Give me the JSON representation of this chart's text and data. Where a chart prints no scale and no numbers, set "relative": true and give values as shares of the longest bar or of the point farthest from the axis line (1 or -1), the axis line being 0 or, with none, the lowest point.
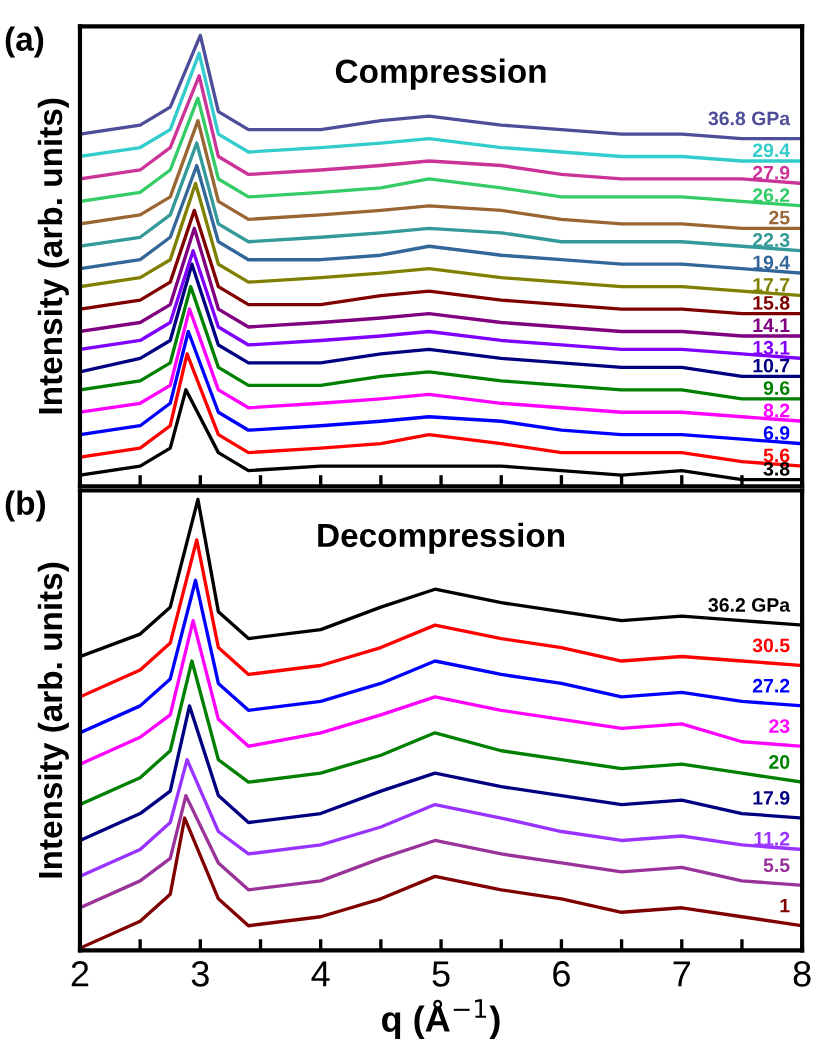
{
  "chart_data": [
    {
      "type": "line",
      "title": "Compression",
      "ylabel": "Intensity (arb. units)",
      "annotations": [
        "(a)"
      ],
      "relative": true,
      "legend": "right",
      "tick_labels": false,
      "xlim": [
        2,
        8
      ],
      "xticks": [
        2,
        {
          "value": 2.5,
          "label": null
        },
        3,
        {
          "value": 3.5,
          "label": null
        },
        4,
        {
          "value": 4.5,
          "label": null
        },
        5,
        {
          "value": 5.5,
          "label": null
        },
        6,
        {
          "value": 6.5,
          "label": null
        },
        7,
        {
          "value": 7.5,
          "label": null
        },
        8
      ],
      "series": [
        {
          "name": "3.8",
          "color": "#000000",
          "x": [
            2,
            2.5,
            2.75,
            2.88,
            3.15,
            3.4,
            4.0,
            4.5,
            4.9,
            5.5,
            6.0,
            6.5,
            7.0,
            7.5,
            8
          ],
          "values": [
            0.02,
            0.04,
            0.08,
            0.21,
            0.07,
            0.03,
            0.04,
            0.04,
            0.04,
            0.04,
            0.03,
            0.02,
            0.03,
            0.01,
            0.01
          ]
        },
        {
          "name": "5.6",
          "color": "#ff0000",
          "x": [
            2,
            2.5,
            2.75,
            2.89,
            3.15,
            3.4,
            4.0,
            4.5,
            4.9,
            5.5,
            6.0,
            6.5,
            7.0,
            7.5,
            8
          ],
          "values": [
            0.06,
            0.08,
            0.13,
            0.29,
            0.11,
            0.07,
            0.08,
            0.09,
            0.11,
            0.09,
            0.07,
            0.07,
            0.07,
            0.05,
            0.04
          ]
        },
        {
          "name": "6.9",
          "color": "#0000ff",
          "x": [
            2,
            2.5,
            2.75,
            2.9,
            3.15,
            3.4,
            4.0,
            4.5,
            4.9,
            5.5,
            6.0,
            6.5,
            7.0,
            7.5,
            8
          ],
          "values": [
            0.11,
            0.13,
            0.18,
            0.34,
            0.16,
            0.12,
            0.13,
            0.14,
            0.15,
            0.14,
            0.12,
            0.11,
            0.11,
            0.1,
            0.09
          ]
        },
        {
          "name": "8.2",
          "color": "#ff00ff",
          "x": [
            2,
            2.5,
            2.75,
            2.91,
            3.15,
            3.4,
            4.0,
            4.5,
            4.9,
            5.5,
            6.0,
            6.5,
            7.0,
            7.5,
            8
          ],
          "values": [
            0.16,
            0.18,
            0.22,
            0.39,
            0.21,
            0.17,
            0.18,
            0.19,
            0.2,
            0.18,
            0.17,
            0.16,
            0.16,
            0.15,
            0.14
          ]
        },
        {
          "name": "9.6",
          "color": "#008000",
          "x": [
            2,
            2.5,
            2.75,
            2.92,
            3.15,
            3.4,
            4.0,
            4.5,
            4.9,
            5.5,
            6.0,
            6.5,
            7.0,
            7.5,
            8
          ],
          "values": [
            0.21,
            0.23,
            0.27,
            0.44,
            0.26,
            0.22,
            0.22,
            0.24,
            0.25,
            0.23,
            0.22,
            0.21,
            0.21,
            0.19,
            0.19
          ]
        },
        {
          "name": "10.7",
          "color": "#000080",
          "x": [
            2,
            2.5,
            2.75,
            2.93,
            3.15,
            3.4,
            4.0,
            4.5,
            4.9,
            5.5,
            6.0,
            6.5,
            7.0,
            7.5,
            8
          ],
          "values": [
            0.25,
            0.28,
            0.32,
            0.49,
            0.31,
            0.27,
            0.27,
            0.29,
            0.3,
            0.28,
            0.27,
            0.26,
            0.26,
            0.24,
            0.24
          ]
        },
        {
          "name": "13.1",
          "color": "#8000ff",
          "x": [
            2,
            2.5,
            2.75,
            2.94,
            3.15,
            3.4,
            4.0,
            4.5,
            4.9,
            5.5,
            6.0,
            6.5,
            7.0,
            7.5,
            8
          ],
          "values": [
            0.3,
            0.32,
            0.36,
            0.52,
            0.35,
            0.31,
            0.32,
            0.33,
            0.34,
            0.32,
            0.31,
            0.3,
            0.3,
            0.29,
            0.28
          ]
        },
        {
          "name": "14.1",
          "color": "#800080",
          "x": [
            2,
            2.5,
            2.75,
            2.95,
            3.15,
            3.4,
            4.0,
            4.5,
            4.9,
            5.5,
            6.0,
            6.5,
            7.0,
            7.5,
            8
          ],
          "values": [
            0.34,
            0.36,
            0.4,
            0.57,
            0.39,
            0.35,
            0.36,
            0.37,
            0.38,
            0.36,
            0.35,
            0.34,
            0.34,
            0.33,
            0.33
          ]
        },
        {
          "name": "15.8",
          "color": "#800000",
          "x": [
            2,
            2.5,
            2.75,
            2.95,
            3.15,
            3.4,
            4.0,
            4.5,
            4.9,
            5.5,
            6.0,
            6.5,
            7.0,
            7.5,
            8
          ],
          "values": [
            0.39,
            0.41,
            0.45,
            0.61,
            0.44,
            0.4,
            0.4,
            0.42,
            0.43,
            0.41,
            0.4,
            0.39,
            0.39,
            0.38,
            0.38
          ]
        },
        {
          "name": "17.7",
          "color": "#808000",
          "x": [
            2,
            2.5,
            2.75,
            2.96,
            3.15,
            3.4,
            4.0,
            4.5,
            4.9,
            5.5,
            6.0,
            6.5,
            7.0,
            7.5,
            8
          ],
          "values": [
            0.44,
            0.46,
            0.5,
            0.67,
            0.49,
            0.45,
            0.46,
            0.47,
            0.48,
            0.46,
            0.45,
            0.44,
            0.44,
            0.43,
            0.42
          ]
        },
        {
          "name": "19.4",
          "color": "#336699",
          "x": [
            2,
            2.5,
            2.75,
            2.97,
            3.15,
            3.4,
            4.0,
            4.5,
            4.9,
            5.5,
            6.0,
            6.5,
            7.0,
            7.5,
            8
          ],
          "values": [
            0.48,
            0.5,
            0.55,
            0.71,
            0.54,
            0.5,
            0.5,
            0.51,
            0.53,
            0.51,
            0.5,
            0.49,
            0.49,
            0.48,
            0.47
          ]
        },
        {
          "name": "22.3",
          "color": "#339999",
          "x": [
            2,
            2.5,
            2.75,
            2.97,
            3.15,
            3.4,
            4.0,
            4.5,
            4.9,
            5.5,
            6.0,
            6.5,
            7.0,
            7.5,
            8
          ],
          "values": [
            0.53,
            0.55,
            0.6,
            0.76,
            0.58,
            0.54,
            0.55,
            0.56,
            0.57,
            0.56,
            0.54,
            0.54,
            0.54,
            0.53,
            0.52
          ]
        },
        {
          "name": "25",
          "color": "#996633",
          "x": [
            2,
            2.5,
            2.75,
            2.98,
            3.15,
            3.4,
            4.0,
            4.5,
            4.9,
            5.5,
            6.0,
            6.5,
            7.0,
            7.5,
            8
          ],
          "values": [
            0.58,
            0.6,
            0.64,
            0.81,
            0.63,
            0.59,
            0.6,
            0.61,
            0.62,
            0.61,
            0.59,
            0.58,
            0.58,
            0.57,
            0.57
          ]
        },
        {
          "name": "26.2",
          "color": "#33cc66",
          "x": [
            2,
            2.5,
            2.75,
            2.98,
            3.15,
            3.4,
            4.0,
            4.5,
            4.9,
            5.5,
            6.0,
            6.5,
            7.0,
            7.5,
            8
          ],
          "values": [
            0.63,
            0.65,
            0.7,
            0.86,
            0.68,
            0.64,
            0.65,
            0.66,
            0.68,
            0.66,
            0.64,
            0.64,
            0.64,
            0.63,
            0.62
          ]
        },
        {
          "name": "27.9",
          "color": "#cc3399",
          "x": [
            2,
            2.5,
            2.75,
            2.99,
            3.15,
            3.4,
            4.0,
            4.5,
            4.9,
            5.5,
            6.0,
            6.5,
            7.0,
            7.5,
            8
          ],
          "values": [
            0.68,
            0.7,
            0.75,
            0.91,
            0.73,
            0.69,
            0.7,
            0.71,
            0.72,
            0.71,
            0.69,
            0.68,
            0.68,
            0.68,
            0.67
          ]
        },
        {
          "name": "29.4",
          "color": "#33cccc",
          "x": [
            2,
            2.5,
            2.75,
            2.99,
            3.15,
            3.4,
            4.0,
            4.5,
            4.9,
            5.5,
            6.0,
            6.5,
            7.0,
            7.5,
            8
          ],
          "values": [
            0.73,
            0.75,
            0.79,
            0.96,
            0.78,
            0.74,
            0.75,
            0.76,
            0.77,
            0.75,
            0.74,
            0.73,
            0.73,
            0.72,
            0.72
          ]
        },
        {
          "name": "36.8 GPa",
          "color": "#4d4d99",
          "x": [
            2,
            2.5,
            2.75,
            3.0,
            3.15,
            3.4,
            4.0,
            4.5,
            4.9,
            5.5,
            6.0,
            6.5,
            7.0,
            7.5,
            8
          ],
          "values": [
            0.78,
            0.8,
            0.84,
            1,
            0.83,
            0.79,
            0.79,
            0.81,
            0.82,
            0.8,
            0.79,
            0.78,
            0.78,
            0.77,
            0.77
          ]
        }
      ]
    },
    {
      "type": "line",
      "title": "Decompression",
      "xlabel": "q (Å$^{−1}$)",
      "ylabel": "Intensity (arb. units)",
      "annotations": [
        "(b)"
      ],
      "relative": true,
      "legend": "right",
      "tick_labels": "x",
      "xlim": [
        2,
        8
      ],
      "xticks": [
        2,
        {
          "value": 2.5,
          "label": null
        },
        3,
        {
          "value": 3.5,
          "label": null
        },
        4,
        {
          "value": 4.5,
          "label": null
        },
        5,
        {
          "value": 5.5,
          "label": null
        },
        6,
        {
          "value": 6.5,
          "label": null
        },
        7,
        {
          "value": 7.5,
          "label": null
        },
        8
      ],
      "series": [
        {
          "name": "1",
          "color": "#800000",
          "x": [
            2,
            2.5,
            2.75,
            2.87,
            3.15,
            3.4,
            4.0,
            4.5,
            4.95,
            5.5,
            6.0,
            6.5,
            7.0,
            7.5,
            8
          ],
          "values": [
            0,
            0.06,
            0.12,
            0.29,
            0.11,
            0.05,
            0.07,
            0.11,
            0.16,
            0.13,
            0.11,
            0.08,
            0.09,
            0.07,
            0.05
          ]
        },
        {
          "name": "5.5",
          "color": "#993399",
          "x": [
            2,
            2.5,
            2.75,
            2.88,
            3.15,
            3.4,
            4.0,
            4.5,
            4.95,
            5.5,
            6.0,
            6.5,
            7.0,
            7.5,
            8
          ],
          "values": [
            0.09,
            0.15,
            0.2,
            0.34,
            0.19,
            0.13,
            0.15,
            0.2,
            0.24,
            0.21,
            0.19,
            0.17,
            0.18,
            0.15,
            0.14
          ]
        },
        {
          "name": "11.2",
          "color": "#9933ff",
          "x": [
            2,
            2.5,
            2.75,
            2.89,
            3.15,
            3.4,
            4.0,
            4.5,
            4.95,
            5.5,
            6.0,
            6.5,
            7.0,
            7.5,
            8
          ],
          "values": [
            0.16,
            0.22,
            0.28,
            0.42,
            0.26,
            0.21,
            0.23,
            0.27,
            0.32,
            0.29,
            0.26,
            0.24,
            0.25,
            0.23,
            0.22
          ]
        },
        {
          "name": "17.9",
          "color": "#000080",
          "x": [
            2,
            2.5,
            2.75,
            2.91,
            3.15,
            3.4,
            4.0,
            4.5,
            4.95,
            5.5,
            6.0,
            6.5,
            7.0,
            7.5,
            8
          ],
          "values": [
            0.24,
            0.3,
            0.35,
            0.54,
            0.34,
            0.28,
            0.3,
            0.35,
            0.39,
            0.36,
            0.34,
            0.32,
            0.33,
            0.3,
            0.29
          ]
        },
        {
          "name": "20",
          "color": "#008000",
          "x": [
            2,
            2.5,
            2.75,
            2.93,
            3.15,
            3.4,
            4.0,
            4.5,
            4.95,
            5.5,
            6.0,
            6.5,
            7.0,
            7.5,
            8
          ],
          "values": [
            0.32,
            0.38,
            0.44,
            0.64,
            0.42,
            0.37,
            0.39,
            0.43,
            0.48,
            0.44,
            0.42,
            0.4,
            0.41,
            0.39,
            0.37
          ]
        },
        {
          "name": "23",
          "color": "#ff00ff",
          "x": [
            2,
            2.5,
            2.75,
            2.94,
            3.15,
            3.4,
            4.0,
            4.5,
            4.95,
            5.5,
            6.0,
            6.5,
            7.0,
            7.5,
            8
          ],
          "values": [
            0.41,
            0.47,
            0.52,
            0.73,
            0.51,
            0.45,
            0.48,
            0.52,
            0.56,
            0.53,
            0.51,
            0.49,
            0.5,
            0.46,
            0.45
          ]
        },
        {
          "name": "27.2",
          "color": "#0000ff",
          "x": [
            2,
            2.5,
            2.75,
            2.96,
            3.15,
            3.4,
            4.0,
            4.5,
            4.95,
            5.5,
            6.0,
            6.5,
            7.0,
            7.5,
            8
          ],
          "values": [
            0.48,
            0.54,
            0.6,
            0.82,
            0.59,
            0.53,
            0.55,
            0.59,
            0.64,
            0.61,
            0.59,
            0.56,
            0.57,
            0.55,
            0.54
          ]
        },
        {
          "name": "30.5",
          "color": "#ff0000",
          "x": [
            2,
            2.5,
            2.75,
            2.97,
            3.15,
            3.4,
            4.0,
            4.5,
            4.95,
            5.5,
            6.0,
            6.5,
            7.0,
            7.5,
            8
          ],
          "values": [
            0.56,
            0.62,
            0.68,
            0.91,
            0.67,
            0.61,
            0.63,
            0.67,
            0.72,
            0.69,
            0.67,
            0.64,
            0.65,
            0.64,
            0.63
          ]
        },
        {
          "name": "36.2 GPa",
          "color": "#000000",
          "x": [
            2,
            2.5,
            2.75,
            2.98,
            3.15,
            3.4,
            4.0,
            4.5,
            4.95,
            5.5,
            6.0,
            6.5,
            7.0,
            7.5,
            8
          ],
          "values": [
            0.65,
            0.7,
            0.76,
            1,
            0.75,
            0.69,
            0.71,
            0.76,
            0.8,
            0.77,
            0.75,
            0.73,
            0.74,
            0.73,
            0.72
          ]
        }
      ]
    }
  ]
}
